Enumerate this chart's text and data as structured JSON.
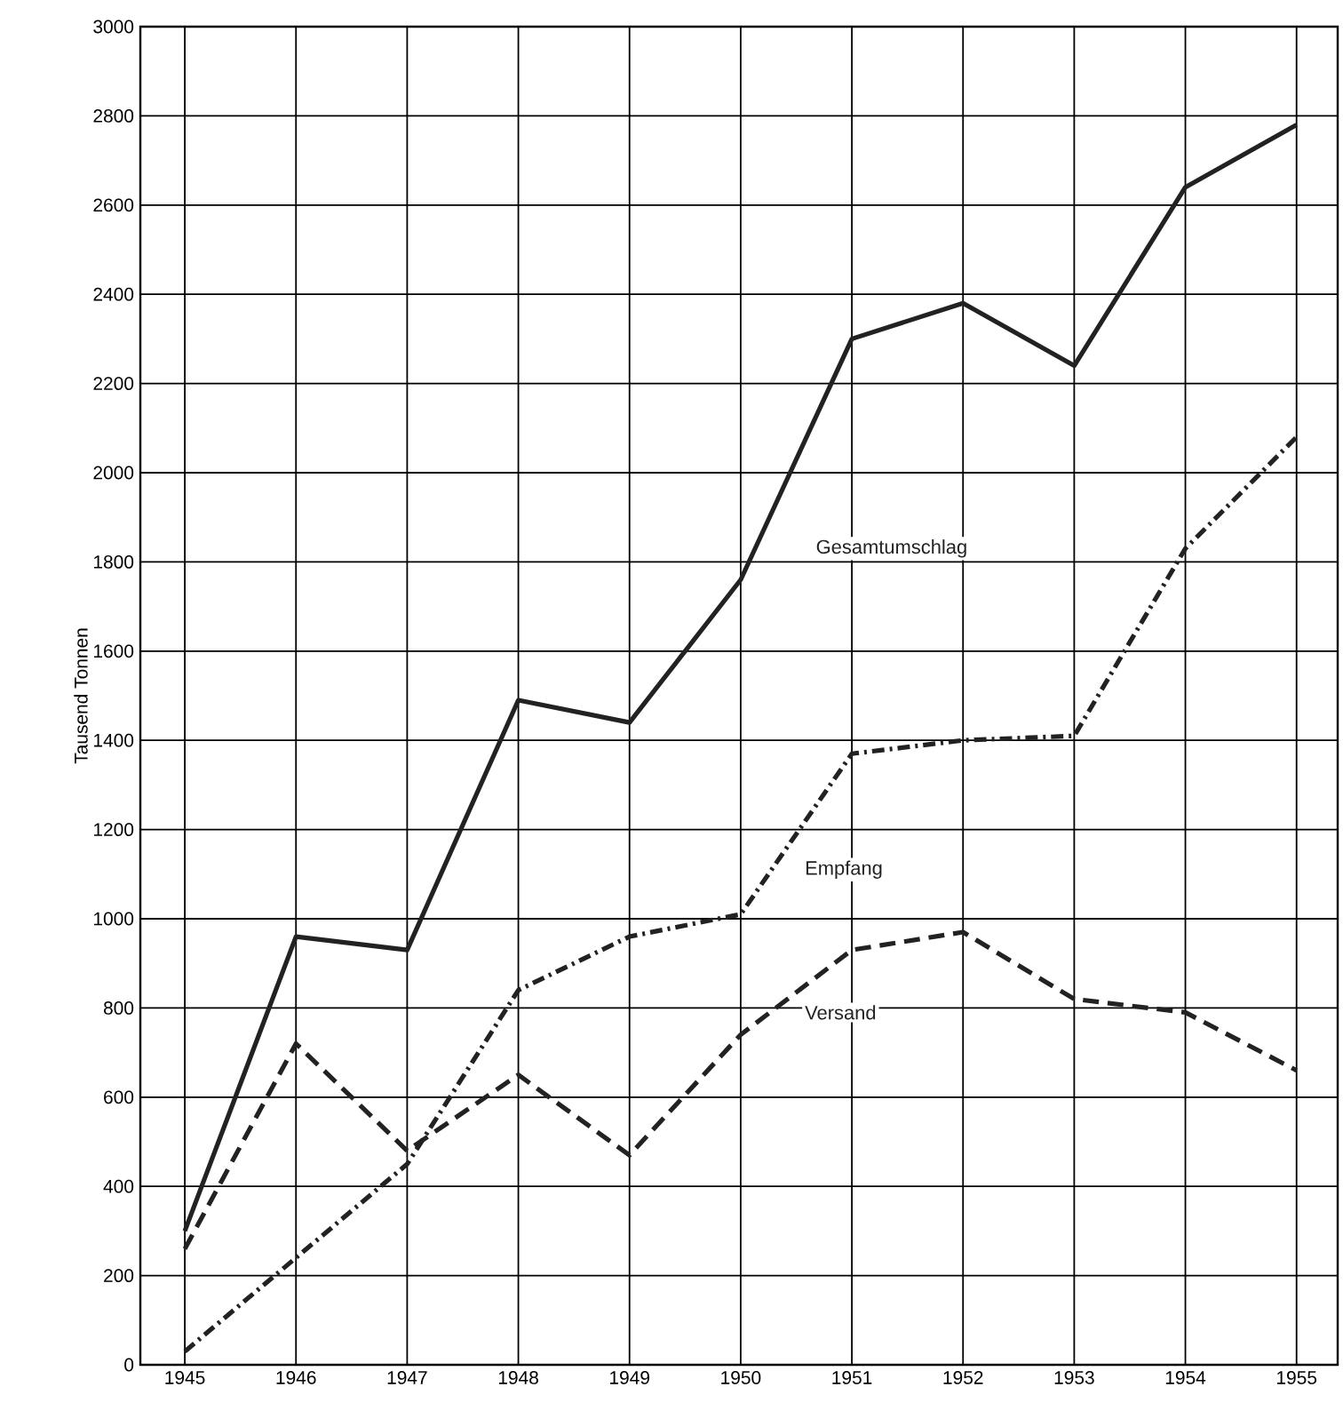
{
  "chart_data": {
    "type": "line",
    "ylabel": "Tausend Tonnen",
    "x": [
      1945,
      1946,
      1947,
      1948,
      1949,
      1950,
      1951,
      1952,
      1953,
      1954,
      1955
    ],
    "series": [
      {
        "name": "Gesamtumschlag",
        "color": "#222222",
        "line_style": "solid",
        "values": [
          300,
          960,
          930,
          1490,
          1440,
          1760,
          2300,
          2380,
          2240,
          2640,
          2780
        ]
      },
      {
        "name": "Empfang",
        "color": "#222222",
        "line_style": "dashdotted",
        "values": [
          30,
          240,
          450,
          840,
          960,
          1010,
          1370,
          1400,
          1410,
          1830,
          2080
        ]
      },
      {
        "name": "Versand",
        "color": "#222222",
        "line_style": "dashed",
        "values": [
          260,
          720,
          480,
          650,
          470,
          740,
          930,
          970,
          820,
          790,
          660
        ]
      }
    ],
    "xlim": [
      1944.6,
      1955.37
    ],
    "ylim": [
      0,
      3000
    ],
    "xticks": [
      1945,
      1946,
      1947,
      1948,
      1949,
      1950,
      1951,
      1952,
      1953,
      1954,
      1955
    ],
    "yticks": [
      0,
      200,
      400,
      600,
      800,
      1000,
      1200,
      1400,
      1600,
      1800,
      2000,
      2200,
      2400,
      2600,
      2800,
      3000
    ],
    "grid": true,
    "marker": "none"
  }
}
